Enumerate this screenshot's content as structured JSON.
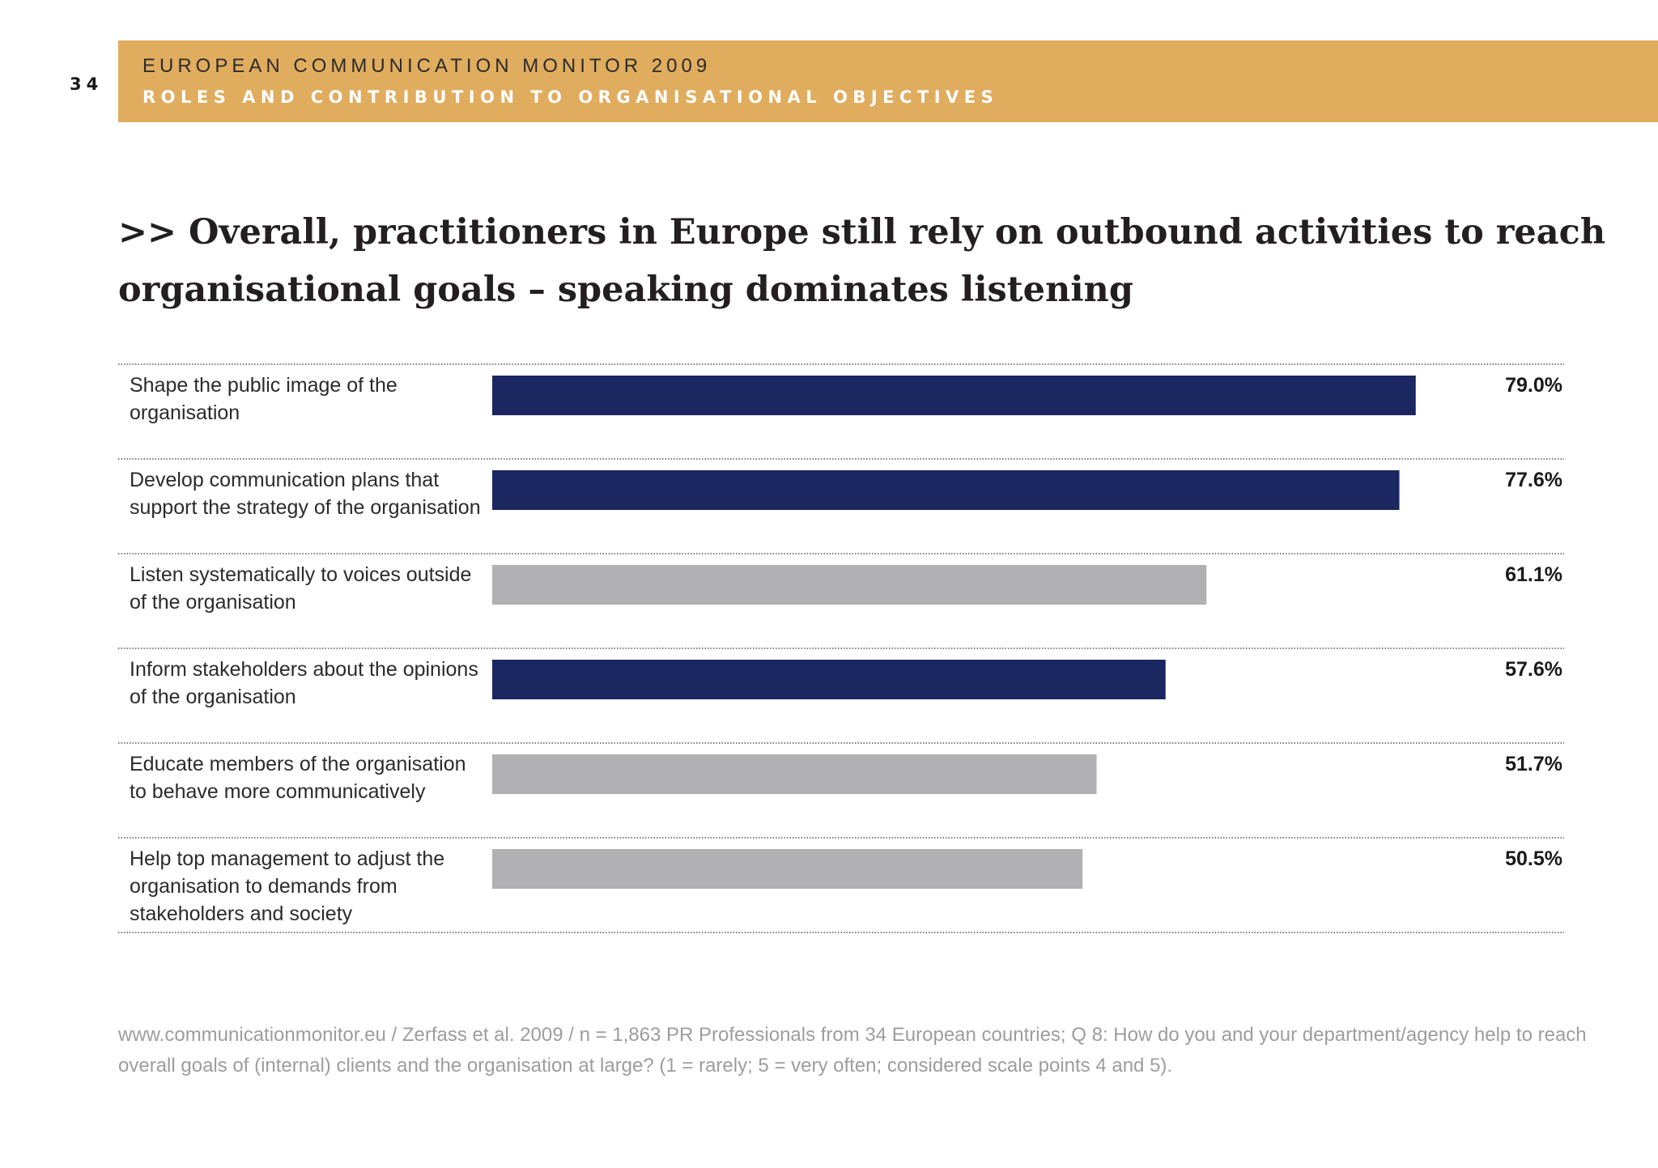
{
  "page": {
    "number": "34",
    "header_title": "EUROPEAN COMMUNICATION MONITOR 2009",
    "header_subtitle": "ROLES AND CONTRIBUTION TO ORGANISATIONAL OBJECTIVES",
    "headline_line1": ">> Overall, practitioners in Europe still rely on outbound activities to reach",
    "headline_line2": "organisational goals – speaking dominates listening",
    "footnote_line1": "www.communicationmonitor.eu / Zerfass et al. 2009 / n = 1,863 PR Professionals from 34 European countries; Q 8: How do you and your department/agency help to reach",
    "footnote_line2": "overall goals of (internal) clients and the organisation at large? (1 = rarely; 5 = very often; considered scale points 4 and 5)."
  },
  "colors": {
    "header_band": "#e0ac5e",
    "bar_dark": "#1b2761",
    "bar_grey": "#b1b1b3",
    "divider": "#555555"
  },
  "chart_data": {
    "type": "bar",
    "orientation": "horizontal",
    "categories": [
      [
        "Shape the public image of the",
        "organisation"
      ],
      [
        "Develop communication plans that",
        "support the strategy of the organisation"
      ],
      [
        "Listen systematically to voices outside",
        "of the organisation"
      ],
      [
        "Inform stakeholders about the opinions",
        "of the organisation"
      ],
      [
        "Educate members of the organisation",
        "to behave more communicatively"
      ],
      [
        "Help top management to adjust the",
        "organisation to demands from",
        "stakeholders and society"
      ]
    ],
    "values": [
      79.0,
      77.6,
      61.1,
      57.6,
      51.7,
      50.5
    ],
    "value_labels": [
      "79.0%",
      "77.6%",
      "61.1%",
      "57.6%",
      "51.7%",
      "50.5%"
    ],
    "bar_colors": [
      "dark",
      "dark",
      "grey",
      "dark",
      "grey",
      "grey"
    ],
    "unit": "%",
    "xlim": [
      0,
      100
    ],
    "grid": false
  }
}
